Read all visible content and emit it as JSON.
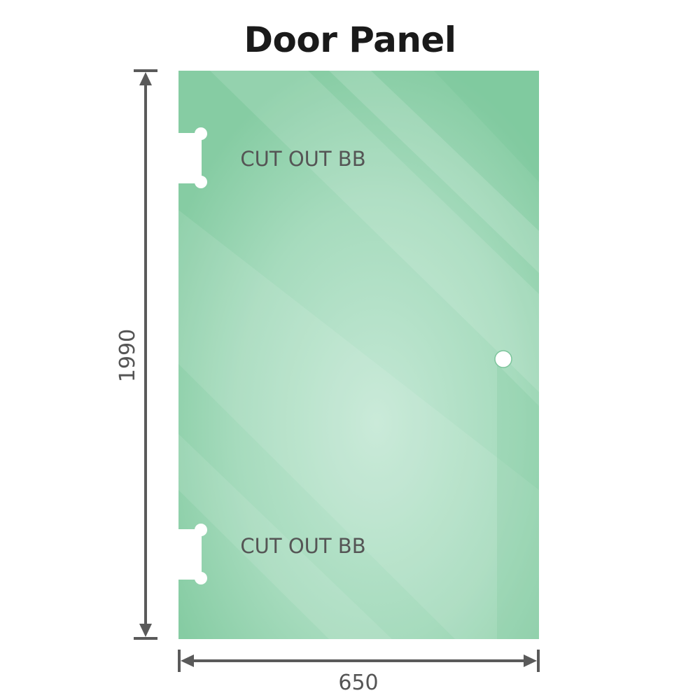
{
  "title": "Door Panel",
  "cutouts": [
    {
      "label": "CUT OUT BB"
    },
    {
      "label": "CUT OUT BB"
    }
  ],
  "dimensions": {
    "height": "1990",
    "width": "650"
  },
  "colors": {
    "glass": "#8ccfa8",
    "glass_light": "#c2e6d3",
    "dimension_line": "#5a5a5a"
  }
}
